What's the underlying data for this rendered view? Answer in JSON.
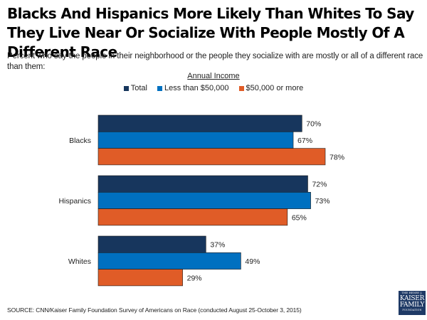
{
  "chart_data": {
    "type": "bar",
    "orientation": "horizontal",
    "title": "Blacks And Hispanics More Likely Than Whites To Say They Live Near Or Socialize With People Mostly Of A Different Race",
    "subtitle": "Percent who say the people in their neighborhood or the people they socialize with are mostly or all of a different race than them:",
    "legend_title": "Annual Income",
    "legend_position": "top-center",
    "categories": [
      "Blacks",
      "Hispanics",
      "Whites"
    ],
    "series": [
      {
        "name": "Total",
        "color": "#17365d",
        "values": [
          70,
          72,
          37
        ]
      },
      {
        "name": "Less than $50,000",
        "color": "#0070c0",
        "values": [
          67,
          73,
          49
        ]
      },
      {
        "name": "$50,000 or more",
        "color": "#e05c27",
        "values": [
          78,
          65,
          29
        ]
      }
    ],
    "value_suffix": "%",
    "xlim": [
      0,
      100
    ],
    "grid": false,
    "xlabel": "",
    "ylabel": ""
  },
  "source": "SOURCE: CNN/Kaiser Family Foundation Survey of Americans on Race (conducted August 25-October 3, 2015)",
  "logo": {
    "line1": "THE HENRY J.",
    "line2": "KAISER",
    "line3": "FAMILY",
    "line4": "FOUNDATION"
  }
}
